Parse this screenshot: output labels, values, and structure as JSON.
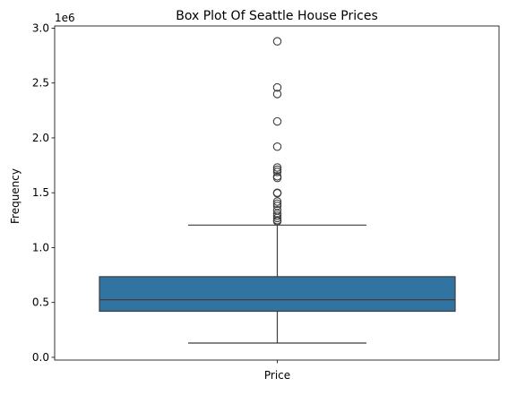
{
  "chart_data": {
    "type": "box",
    "title": "Box Plot Of Seattle House Prices",
    "xlabel": "",
    "ylabel": "Frequency",
    "y_offset_label": "1e6",
    "y_scale": 1000000,
    "ylim": [
      -25000,
      3020000
    ],
    "y_ticks": [
      0.0,
      0.5,
      1.0,
      1.5,
      2.0,
      2.5,
      3.0
    ],
    "y_tick_labels": [
      "0.0",
      "0.5",
      "1.0",
      "1.5",
      "2.0",
      "2.5",
      "3.0"
    ],
    "categories": [
      "Price"
    ],
    "grid": false,
    "box": {
      "whisker_low": 130000,
      "q1": 420000,
      "median": 525000,
      "q3": 735000,
      "whisker_high": 1205000
    },
    "outliers": [
      2880000,
      2460000,
      2400000,
      2150000,
      1920000,
      1730000,
      1710000,
      1690000,
      1650000,
      1635000,
      1500000,
      1495000,
      1420000,
      1400000,
      1380000,
      1340000,
      1310000,
      1290000,
      1270000,
      1250000,
      1240000
    ],
    "colors": {
      "box_fill": "#3274a1",
      "line": "#3d3d3d",
      "outlier_edge": "#3d3d3d"
    }
  }
}
